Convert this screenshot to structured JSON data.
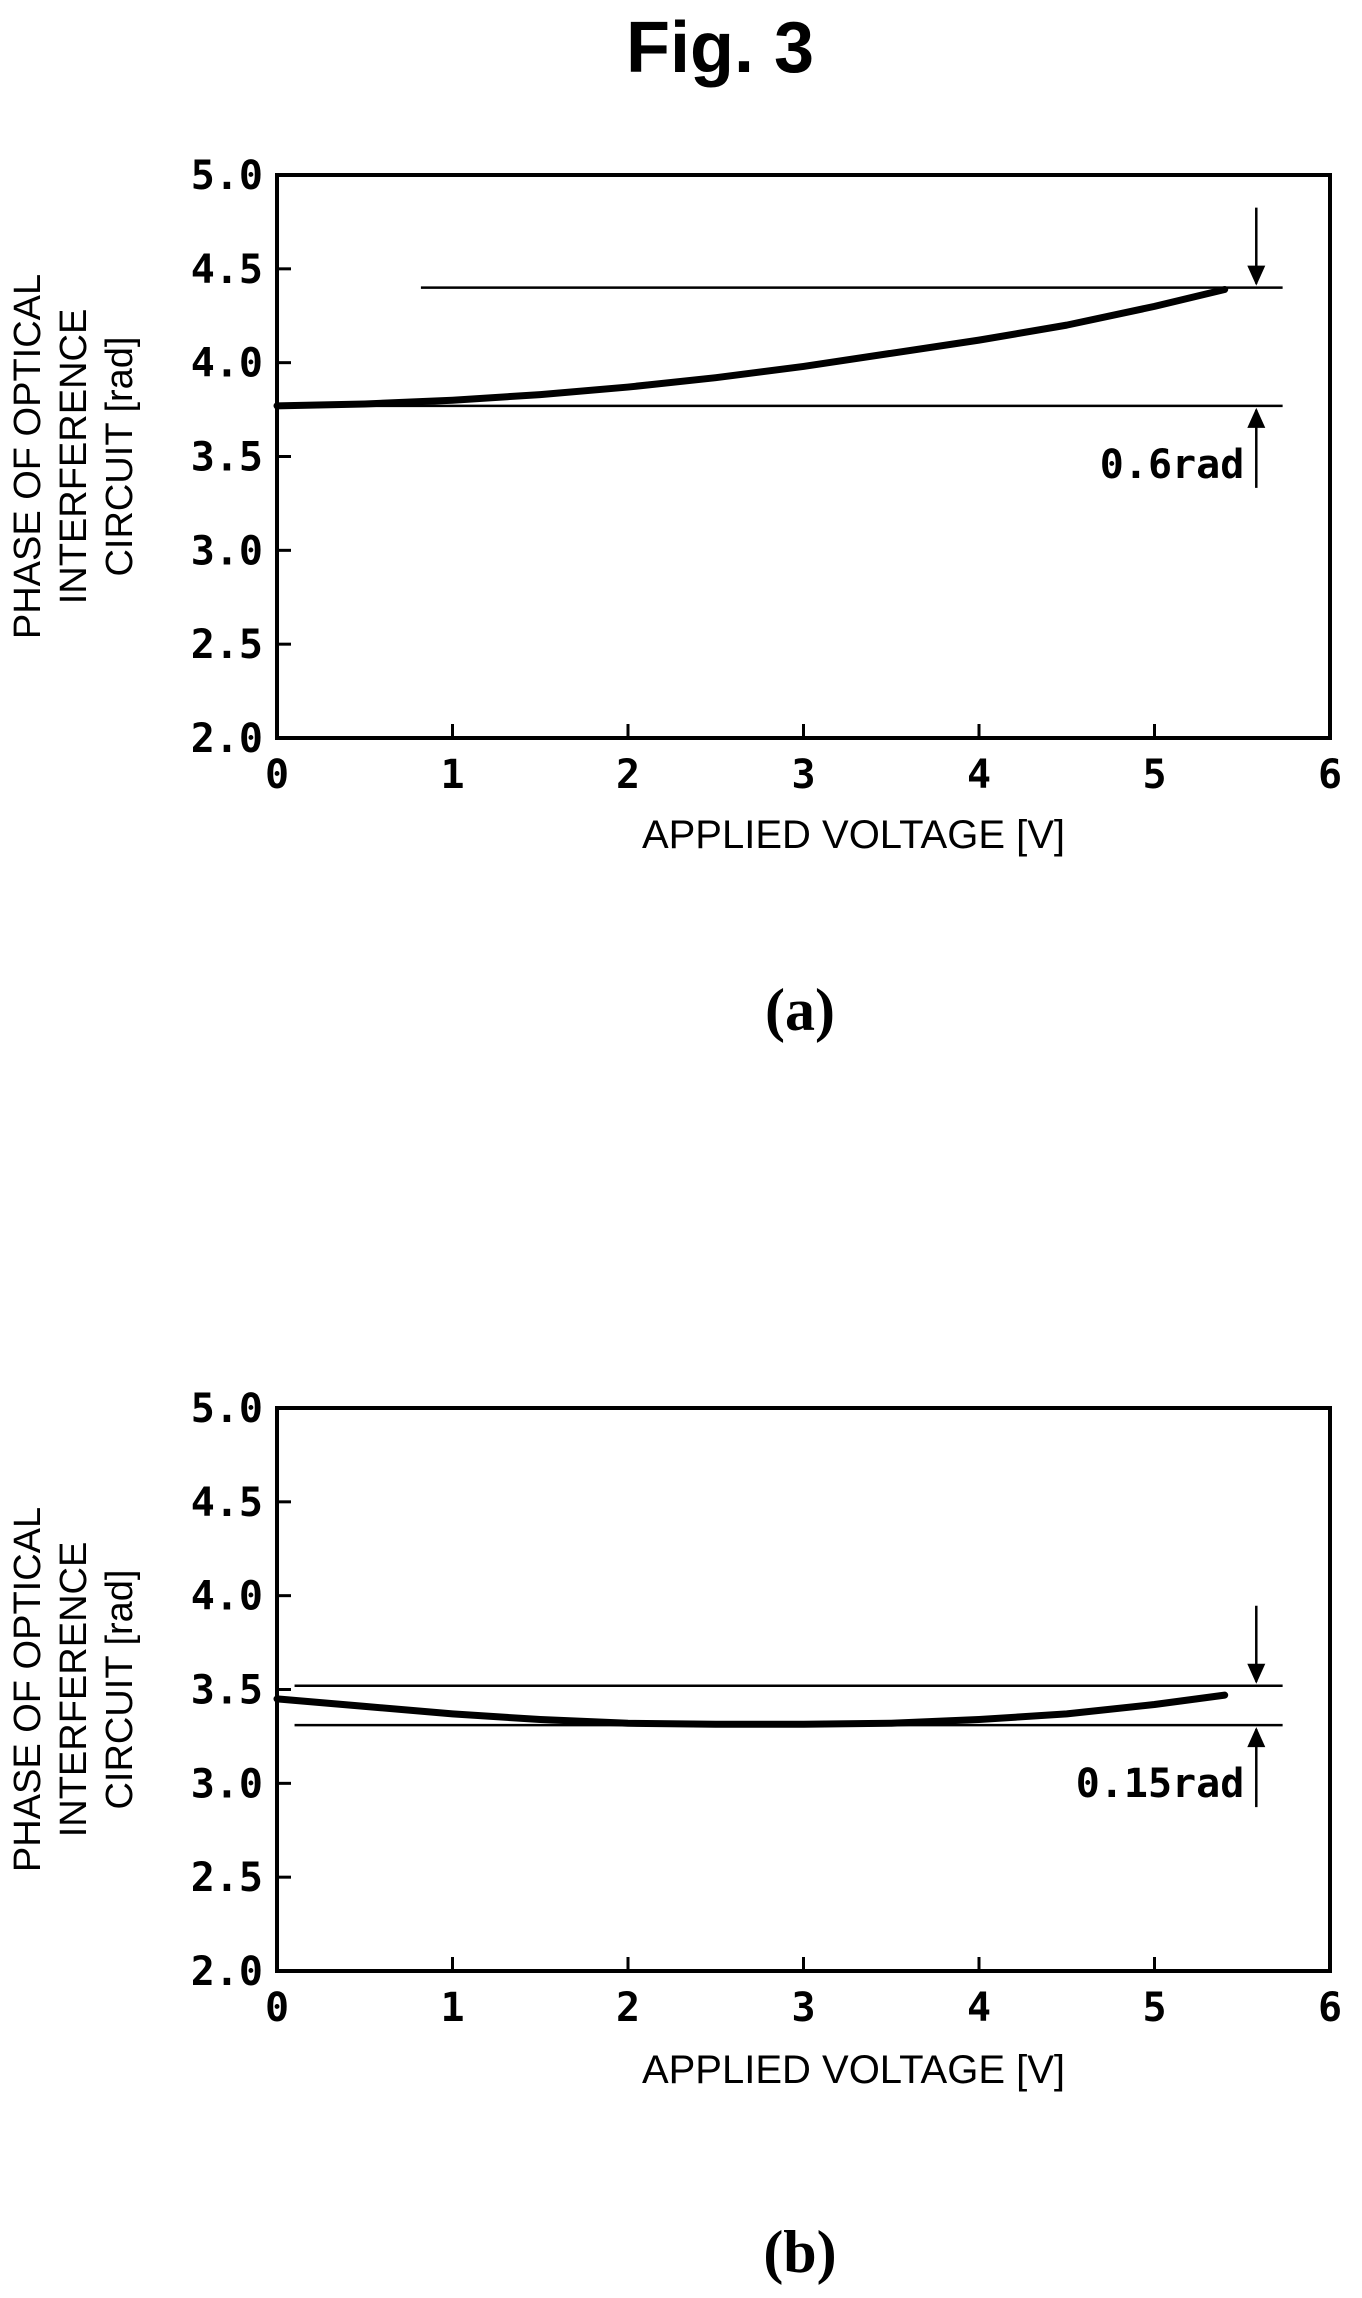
{
  "figure_title": "Fig. 3",
  "chart_data": [
    {
      "type": "line",
      "panel_label": "(a)",
      "xlabel": "APPLIED VOLTAGE [V]",
      "ylabel_lines": [
        "PHASE OF OPTICAL",
        "INTERFERENCE",
        "CIRCUIT [rad]"
      ],
      "xlim": [
        0,
        6
      ],
      "ylim": [
        2.0,
        5.0
      ],
      "x_ticks": [
        "0",
        "1",
        "2",
        "3",
        "4",
        "5",
        "6"
      ],
      "y_ticks": [
        "2.0",
        "2.5",
        "3.0",
        "3.5",
        "4.0",
        "4.5",
        "5.0"
      ],
      "series": [
        {
          "x": [
            0,
            0.5,
            1,
            1.5,
            2,
            2.5,
            3,
            3.5,
            4,
            4.5,
            5,
            5.4
          ],
          "y": [
            3.77,
            3.78,
            3.8,
            3.83,
            3.87,
            3.92,
            3.98,
            4.05,
            4.12,
            4.2,
            4.3,
            4.39
          ]
        }
      ],
      "reference_lines": [
        {
          "y": 4.4,
          "x_start": 0.82,
          "x_end": 5.73
        },
        {
          "y": 3.77,
          "x_start": 0.0,
          "x_end": 5.73
        }
      ],
      "annotation": {
        "text": "0.6rad",
        "x": 5.58,
        "y_top": 4.4,
        "y_bottom": 3.77
      }
    },
    {
      "type": "line",
      "panel_label": "(b)",
      "xlabel": "APPLIED VOLTAGE [V]",
      "ylabel_lines": [
        "PHASE OF OPTICAL",
        "INTERFERENCE",
        "CIRCUIT [rad]"
      ],
      "xlim": [
        0,
        6
      ],
      "ylim": [
        2.0,
        5.0
      ],
      "x_ticks": [
        "0",
        "1",
        "2",
        "3",
        "4",
        "5",
        "6"
      ],
      "y_ticks": [
        "2.0",
        "2.5",
        "3.0",
        "3.5",
        "4.0",
        "4.5",
        "5.0"
      ],
      "series": [
        {
          "x": [
            0,
            0.5,
            1,
            1.5,
            2,
            2.5,
            3,
            3.5,
            4,
            4.5,
            5,
            5.4
          ],
          "y": [
            3.45,
            3.41,
            3.37,
            3.34,
            3.32,
            3.315,
            3.315,
            3.32,
            3.34,
            3.37,
            3.42,
            3.47
          ]
        }
      ],
      "reference_lines": [
        {
          "y": 3.52,
          "x_start": 0.1,
          "x_end": 5.73
        },
        {
          "y": 3.31,
          "x_start": 0.1,
          "x_end": 5.73
        }
      ],
      "annotation": {
        "text": "0.15rad",
        "x": 5.58,
        "y_top": 3.52,
        "y_bottom": 3.31
      }
    }
  ]
}
